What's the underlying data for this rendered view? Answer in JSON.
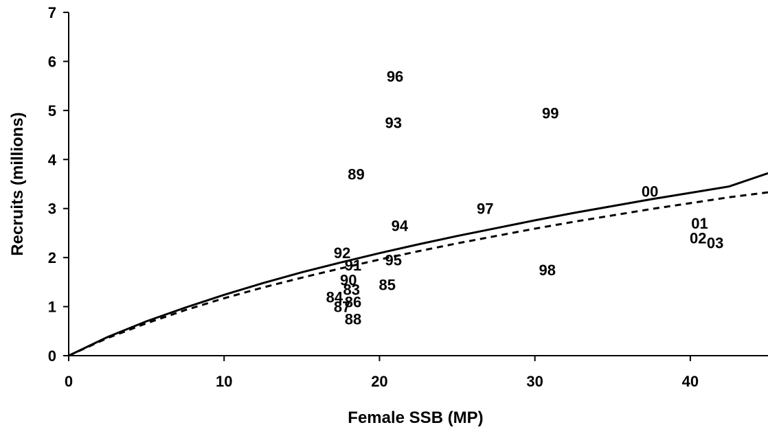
{
  "chart_data": {
    "type": "scatter",
    "title": "",
    "xlabel": "Female SSB (MP)",
    "ylabel": "Recruits (millions)",
    "xlim": [
      0,
      45
    ],
    "ylim": [
      0,
      7
    ],
    "x_ticks": [
      0,
      10,
      20,
      30,
      40
    ],
    "y_ticks": [
      0,
      1,
      2,
      3,
      4,
      5,
      6,
      7
    ],
    "grid": false,
    "legend": "none",
    "points": [
      {
        "label": "84",
        "x": 17.1,
        "y": 1.2
      },
      {
        "label": "85",
        "x": 20.5,
        "y": 1.45
      },
      {
        "label": "86",
        "x": 18.3,
        "y": 1.1
      },
      {
        "label": "87",
        "x": 17.6,
        "y": 1.0
      },
      {
        "label": "88",
        "x": 18.3,
        "y": 0.75
      },
      {
        "label": "89",
        "x": 18.5,
        "y": 3.7
      },
      {
        "label": "90",
        "x": 18.0,
        "y": 1.55
      },
      {
        "label": "91",
        "x": 18.3,
        "y": 1.85
      },
      {
        "label": "92",
        "x": 17.6,
        "y": 2.1
      },
      {
        "label": "93",
        "x": 20.9,
        "y": 4.75
      },
      {
        "label": "94",
        "x": 21.3,
        "y": 2.65
      },
      {
        "label": "95",
        "x": 20.9,
        "y": 1.95
      },
      {
        "label": "96",
        "x": 21.0,
        "y": 5.7
      },
      {
        "label": "97",
        "x": 26.8,
        "y": 3.0
      },
      {
        "label": "98",
        "x": 30.8,
        "y": 1.75
      },
      {
        "label": "99",
        "x": 31.0,
        "y": 4.95
      },
      {
        "label": "00",
        "x": 37.4,
        "y": 3.35
      },
      {
        "label": "01",
        "x": 40.6,
        "y": 2.7
      },
      {
        "label": "02",
        "x": 40.5,
        "y": 2.4
      },
      {
        "label": "03",
        "x": 41.6,
        "y": 2.3
      },
      {
        "label": "83",
        "x": 18.2,
        "y": 1.35
      }
    ],
    "series": [
      {
        "style": "solid",
        "x": [
          0,
          2.5,
          5,
          7.5,
          10,
          12.5,
          15,
          17.5,
          20,
          22.5,
          25,
          27.5,
          30,
          32.5,
          35,
          37.5,
          40,
          42.5,
          45
        ],
        "y": [
          0,
          0.38,
          0.7,
          0.98,
          1.24,
          1.48,
          1.7,
          1.9,
          2.09,
          2.27,
          2.44,
          2.6,
          2.76,
          2.91,
          3.05,
          3.19,
          3.32,
          3.45,
          3.72
        ]
      },
      {
        "style": "dashed",
        "x": [
          0,
          2.5,
          5,
          7.5,
          10,
          12.5,
          15,
          17.5,
          20,
          22.5,
          25,
          27.5,
          30,
          32.5,
          35,
          37.5,
          40,
          42.5,
          45
        ],
        "y": [
          0,
          0.36,
          0.66,
          0.93,
          1.17,
          1.39,
          1.59,
          1.78,
          1.96,
          2.13,
          2.29,
          2.44,
          2.59,
          2.73,
          2.86,
          2.99,
          3.11,
          3.23,
          3.33
        ]
      }
    ]
  }
}
